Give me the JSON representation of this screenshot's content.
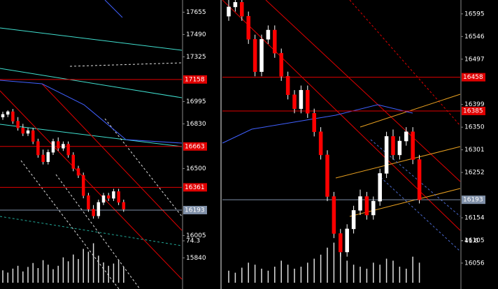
{
  "chart_data": [
    {
      "type": "candlestick",
      "open": [
        16880,
        16900,
        16920,
        16850,
        16800,
        16760,
        16780,
        16700,
        16600,
        16550,
        16620,
        16700,
        16650,
        16680,
        16600,
        16500,
        16450,
        16300,
        16200,
        16150,
        16250,
        16300,
        16280,
        16330,
        16250
      ],
      "high": [
        16920,
        16930,
        16940,
        16880,
        16830,
        16800,
        16800,
        16720,
        16640,
        16640,
        16720,
        16730,
        16700,
        16700,
        16620,
        16520,
        16470,
        16320,
        16230,
        16270,
        16320,
        16320,
        16350,
        16350,
        16270
      ],
      "low": [
        16860,
        16880,
        16830,
        16780,
        16740,
        16740,
        16680,
        16580,
        16530,
        16530,
        16600,
        16630,
        16630,
        16580,
        16480,
        16430,
        16280,
        16180,
        16130,
        16130,
        16230,
        16260,
        16260,
        16230,
        16180
      ],
      "close": [
        16900,
        16920,
        16850,
        16800,
        16760,
        16780,
        16700,
        16600,
        16550,
        16620,
        16700,
        16650,
        16680,
        16600,
        16500,
        16450,
        16300,
        16200,
        16150,
        16250,
        16300,
        16280,
        16330,
        16250,
        16200
      ],
      "volume": [
        22,
        18,
        25,
        30,
        20,
        28,
        35,
        26,
        40,
        32,
        24,
        30,
        45,
        38,
        50,
        42,
        60,
        55,
        70,
        48,
        36,
        30,
        34,
        40,
        28
      ],
      "ylim": [
        15610,
        17745
      ],
      "yticks": [
        15840,
        16005,
        16500,
        16830,
        16995,
        17325,
        17490,
        17655
      ],
      "levels": [
        {
          "value": 17158,
          "color": "#e00000"
        },
        {
          "value": 16663,
          "color": "#e00000"
        },
        {
          "value": 16361,
          "color": "#e00000"
        },
        {
          "value": 16193,
          "color": "#8090a8"
        }
      ],
      "vlim": [
        0,
        74.3
      ],
      "vticks": [
        74.3
      ]
    },
    {
      "type": "candlestick",
      "open": [
        16590,
        16610,
        16620,
        16590,
        16540,
        16470,
        16540,
        16560,
        16510,
        16460,
        16420,
        16390,
        16430,
        16380,
        16340,
        16290,
        16200,
        16120,
        16080,
        16130,
        16170,
        16200,
        16160,
        16190,
        16250,
        16330,
        16290,
        16320,
        16340,
        16280
      ],
      "high": [
        16625,
        16625,
        16625,
        16600,
        16550,
        16550,
        16570,
        16570,
        16520,
        16470,
        16430,
        16440,
        16440,
        16390,
        16350,
        16300,
        16210,
        16130,
        16140,
        16180,
        16215,
        16210,
        16200,
        16260,
        16340,
        16345,
        16330,
        16350,
        16350,
        16290
      ],
      "low": [
        16580,
        16600,
        16580,
        16530,
        16460,
        16460,
        16530,
        16500,
        16450,
        16410,
        16380,
        16380,
        16370,
        16330,
        16280,
        16190,
        16110,
        16070,
        16070,
        16120,
        16160,
        16150,
        16150,
        16180,
        16240,
        16280,
        16280,
        16310,
        16270,
        16185
      ],
      "close": [
        16610,
        16620,
        16590,
        16540,
        16470,
        16540,
        16560,
        16510,
        16460,
        16420,
        16390,
        16430,
        16380,
        16340,
        16290,
        16200,
        16120,
        16080,
        16130,
        16170,
        16200,
        16160,
        16190,
        16250,
        16330,
        16290,
        16320,
        16340,
        16280,
        16193
      ],
      "volume": [
        12,
        10,
        15,
        20,
        18,
        14,
        12,
        16,
        22,
        18,
        14,
        16,
        20,
        24,
        28,
        35,
        40,
        30,
        22,
        18,
        16,
        14,
        20,
        18,
        24,
        22,
        16,
        14,
        26,
        20
      ],
      "ylim": [
        16000,
        16625
      ],
      "yticks": [
        16056,
        16105,
        16154,
        16252,
        16301,
        16350,
        16399,
        16497,
        16546,
        16595
      ],
      "levels": [
        {
          "value": 16458,
          "color": "#e00000"
        },
        {
          "value": 16385,
          "color": "#e00000"
        },
        {
          "value": 16193,
          "color": "#8090a8"
        }
      ],
      "vlim": [
        0,
        41.8
      ],
      "vticks": [
        41.8
      ]
    }
  ]
}
